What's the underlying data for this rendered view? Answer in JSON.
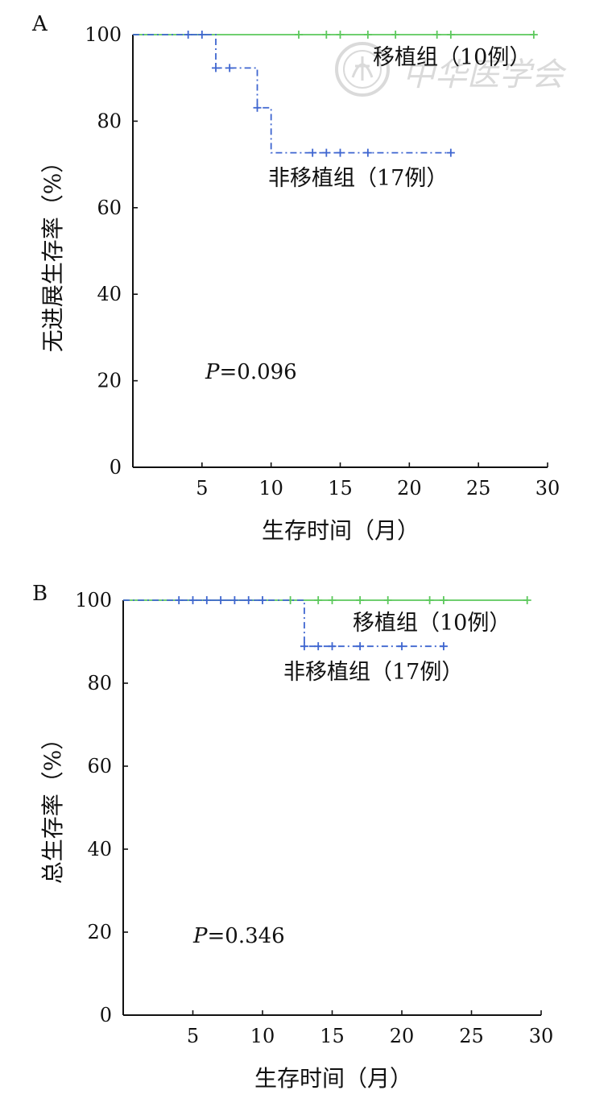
{
  "colors": {
    "transplant": "#5cc85c",
    "non_transplant": "#3f66d0",
    "axis": "#111111",
    "watermark": "#d6d6d6"
  },
  "watermark": {
    "text": "中华医学会",
    "icon": "medical-association-seal-icon"
  },
  "chart_data": [
    {
      "type": "line",
      "panel_label": "A",
      "title": "",
      "xlabel": "生存时间（月）",
      "ylabel": "无进展生存率（%）",
      "xlim": [
        0,
        30
      ],
      "ylim": [
        0,
        100
      ],
      "x_ticks": [
        5,
        10,
        15,
        20,
        25,
        30
      ],
      "y_ticks": [
        0,
        20,
        40,
        60,
        80,
        100
      ],
      "grid": false,
      "annotation": {
        "prefix": "P",
        "text": "=0.096"
      },
      "series": [
        {
          "name": "移植组（10例）",
          "style": "solid",
          "steps": [
            [
              0,
              100
            ],
            [
              29,
              100
            ]
          ],
          "censored": [
            [
              12,
              100
            ],
            [
              14,
              100
            ],
            [
              15,
              100
            ],
            [
              17,
              100
            ],
            [
              19,
              100
            ],
            [
              22,
              100
            ],
            [
              23,
              100
            ],
            [
              29,
              100
            ]
          ]
        },
        {
          "name": "非移植组（17例）",
          "style": "dashdot",
          "steps": [
            [
              0,
              100
            ],
            [
              6,
              100
            ],
            [
              6,
              92.3
            ],
            [
              9,
              92.3
            ],
            [
              9,
              83.1
            ],
            [
              10,
              83.1
            ],
            [
              10,
              72.7
            ],
            [
              23,
              72.7
            ]
          ],
          "censored": [
            [
              4,
              100
            ],
            [
              5,
              100
            ],
            [
              6,
              92.3
            ],
            [
              7,
              92.3
            ],
            [
              9,
              83.1
            ],
            [
              13,
              72.7
            ],
            [
              14,
              72.7
            ],
            [
              15,
              72.7
            ],
            [
              17,
              72.7
            ],
            [
              23,
              72.7
            ]
          ]
        }
      ]
    },
    {
      "type": "line",
      "panel_label": "B",
      "title": "",
      "xlabel": "生存时间（月）",
      "ylabel": "总生存率（%）",
      "xlim": [
        0,
        30
      ],
      "ylim": [
        0,
        100
      ],
      "x_ticks": [
        5,
        10,
        15,
        20,
        25,
        30
      ],
      "y_ticks": [
        0,
        20,
        40,
        60,
        80,
        100
      ],
      "grid": false,
      "annotation": {
        "prefix": "P",
        "text": "=0.346"
      },
      "series": [
        {
          "name": "移植组（10例）",
          "style": "solid",
          "steps": [
            [
              0,
              100
            ],
            [
              29,
              100
            ]
          ],
          "censored": [
            [
              12,
              100
            ],
            [
              14,
              100
            ],
            [
              15,
              100
            ],
            [
              17,
              100
            ],
            [
              19,
              100
            ],
            [
              22,
              100
            ],
            [
              23,
              100
            ],
            [
              29,
              100
            ]
          ]
        },
        {
          "name": "非移植组（17例）",
          "style": "dashdot",
          "steps": [
            [
              0,
              100
            ],
            [
              13,
              100
            ],
            [
              13,
              88.9
            ],
            [
              23,
              88.9
            ]
          ],
          "censored": [
            [
              4,
              100
            ],
            [
              5,
              100
            ],
            [
              6,
              100
            ],
            [
              7,
              100
            ],
            [
              8,
              100
            ],
            [
              9,
              100
            ],
            [
              10,
              100
            ],
            [
              13,
              88.9
            ],
            [
              14,
              88.9
            ],
            [
              15,
              88.9
            ],
            [
              17,
              88.9
            ],
            [
              20,
              88.9
            ],
            [
              23,
              88.9
            ]
          ]
        }
      ]
    }
  ]
}
